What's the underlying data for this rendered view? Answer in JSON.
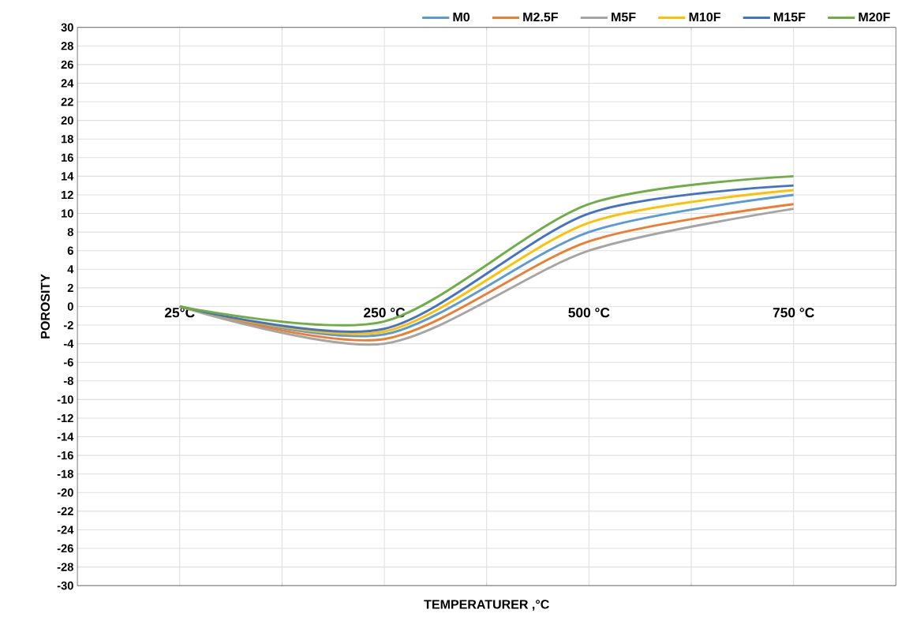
{
  "chart_data": {
    "type": "line",
    "xlabel": "TEMPERATURER ,°C",
    "ylabel": "POROSITY",
    "categories": [
      "25°C",
      "250 °C",
      "500 °C",
      "750 °C"
    ],
    "series": [
      {
        "name": "M0",
        "color": "#5b9bd5",
        "values": [
          0,
          -3,
          8,
          12
        ]
      },
      {
        "name": "M2.5F",
        "color": "#ed7d31",
        "values": [
          0,
          -3.5,
          7,
          11
        ]
      },
      {
        "name": "M5F",
        "color": "#a5a5a5",
        "values": [
          0,
          -4,
          6,
          10.5
        ]
      },
      {
        "name": "M10F",
        "color": "#ffc000",
        "values": [
          0,
          -2.7,
          9,
          12.5
        ]
      },
      {
        "name": "M15F",
        "color": "#4472c4",
        "values": [
          0,
          -2.4,
          10,
          13
        ]
      },
      {
        "name": "M20F",
        "color": "#70ad47",
        "values": [
          0,
          -1.6,
          11,
          14
        ]
      }
    ],
    "ylim": [
      -30,
      30
    ],
    "yticks": [
      -30,
      -28,
      -26,
      -24,
      -22,
      -20,
      -18,
      -16,
      -14,
      -12,
      -10,
      -8,
      -6,
      -4,
      -2,
      0,
      2,
      4,
      6,
      8,
      10,
      12,
      14,
      16,
      18,
      20,
      22,
      24,
      26,
      28,
      30
    ],
    "grid": true,
    "legend": "top",
    "marker": "none"
  }
}
